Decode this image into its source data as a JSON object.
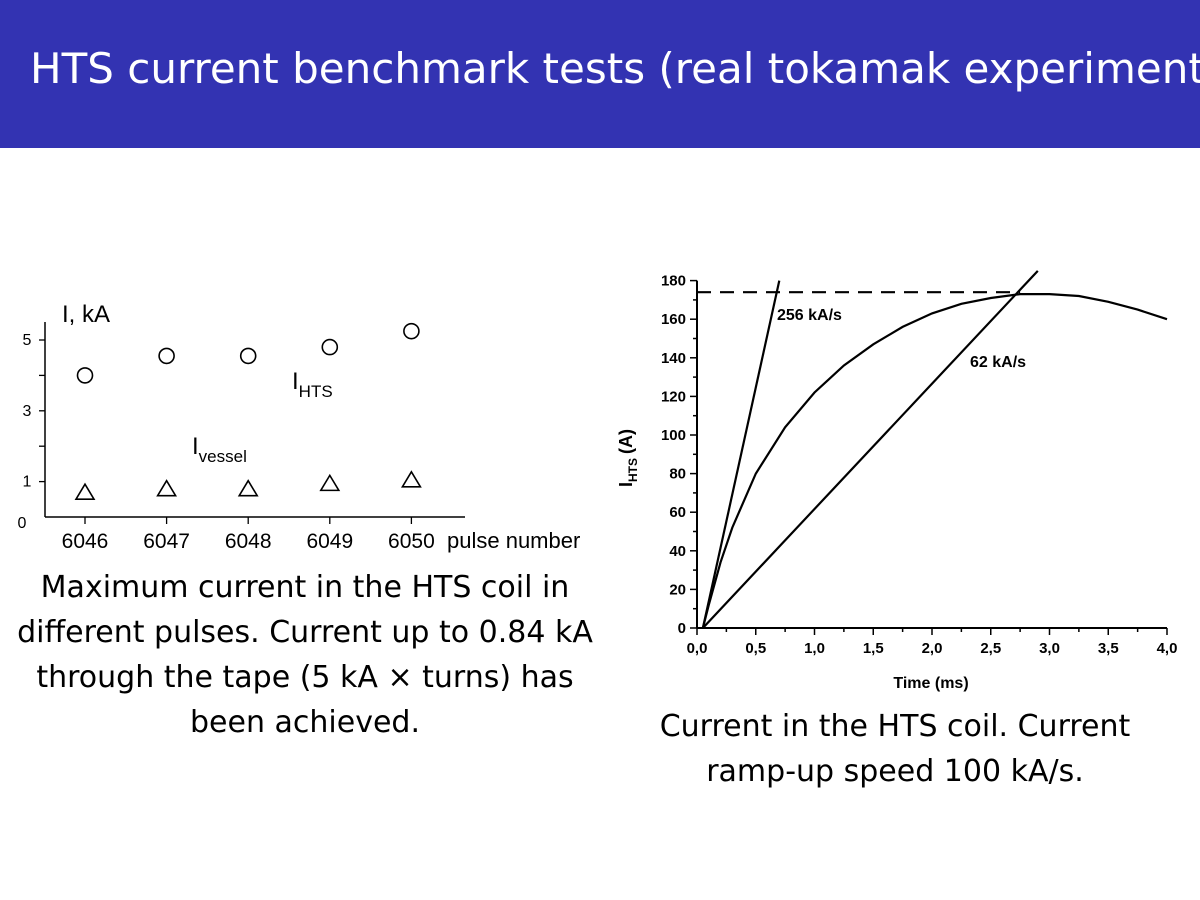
{
  "slide": {
    "title": "HTS current benchmark tests (real tokamak experiment)",
    "header_color": "#3333b2"
  },
  "left_caption": "Maximum current in the HTS coil in different pulses. Current up to 0.84 kA through the tape (5 kA × turns) has been achieved.",
  "right_caption": "Current in the HTS coil. Current ramp-up speed 100 kA/s.",
  "chart_data": [
    {
      "type": "scatter",
      "xlabel": "pulse number",
      "ylabel": "I, kA",
      "categories": [
        "6046",
        "6047",
        "6048",
        "6049",
        "6050"
      ],
      "y_ticks": [
        "0",
        "1",
        "3",
        "5"
      ],
      "ylim": [
        0,
        5.5
      ],
      "grid": false,
      "series": [
        {
          "name": "I",
          "subscript": "HTS",
          "marker": "circle",
          "values": [
            4.0,
            4.55,
            4.55,
            4.8,
            5.25
          ]
        },
        {
          "name": "I",
          "subscript": "vessel",
          "marker": "triangle",
          "values": [
            0.7,
            0.8,
            0.8,
            0.95,
            1.05
          ]
        }
      ]
    },
    {
      "type": "line",
      "xlabel": "Time (ms)",
      "ylabel": "I",
      "ylabel_sub": "HTS",
      "ylabel_unit": "(A)",
      "xlim": [
        0,
        4
      ],
      "ylim": [
        0,
        180
      ],
      "x_ticks": [
        "0,0",
        "0,5",
        "1,0",
        "1,5",
        "2,0",
        "2,5",
        "3,0",
        "3,5",
        "4,0"
      ],
      "y_ticks": [
        "0",
        "20",
        "40",
        "60",
        "80",
        "100",
        "120",
        "140",
        "160",
        "180"
      ],
      "grid": false,
      "annotations": [
        {
          "text": "256 kA/s"
        },
        {
          "text": "62 kA/s"
        }
      ],
      "series": [
        {
          "style": "solid",
          "x": [
            0.05,
            0.7
          ],
          "y": [
            0,
            180
          ]
        },
        {
          "style": "solid",
          "x": [
            0.05,
            2.9
          ],
          "y": [
            0,
            185
          ]
        },
        {
          "style": "dashed",
          "x": [
            0,
            2.75
          ],
          "y": [
            174,
            174
          ]
        },
        {
          "style": "solid",
          "x": [
            0.05,
            0.1,
            0.2,
            0.3,
            0.5,
            0.75,
            1.0,
            1.25,
            1.5,
            1.75,
            2.0,
            2.25,
            2.5,
            2.75,
            3.0,
            3.25,
            3.5,
            3.75,
            4.0
          ],
          "y": [
            0,
            12,
            34,
            52,
            80,
            104,
            122,
            136,
            147,
            156,
            163,
            168,
            171,
            173,
            173,
            172,
            169,
            165,
            160
          ]
        }
      ]
    }
  ]
}
